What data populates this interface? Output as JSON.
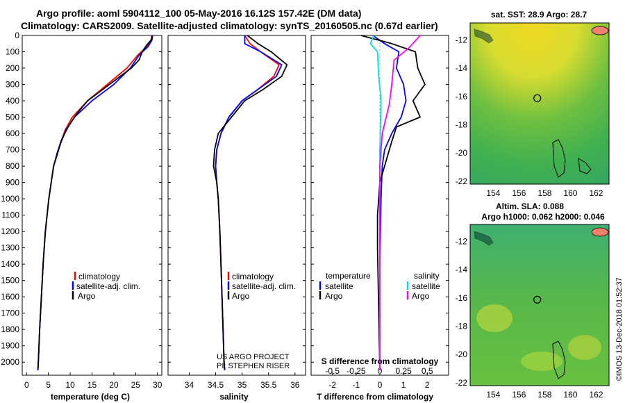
{
  "header": {
    "line1": "Argo profile: aoml 5904112_100 05-May-2016 16.12S 157.42E (DM data)",
    "line2": "Climatology: CARS2009. Satellite-adjusted climatology: synTS_20160505.nc (0.67d earlier)"
  },
  "colors": {
    "climatology": "#ff0000",
    "satellite": "#0000ff",
    "argo": "#000000",
    "sat_salinity": "#00e0e0",
    "argo_salinity": "#ff00ff",
    "land": "#f08070"
  },
  "credit": {
    "line1": "US ARGO PROJECT",
    "line2": "PI: STEPHEN RISER"
  },
  "timestamp": "©IMOS 13-Dec-2018 01:52:37",
  "chart_data": [
    {
      "type": "line",
      "name": "temperature-profile",
      "xlabel": "temperature (deg C)",
      "ylim": [
        2080,
        0
      ],
      "xlim": [
        -1,
        31
      ],
      "xticks": [
        0,
        5,
        10,
        15,
        20,
        25,
        30
      ],
      "yticks": [
        0,
        100,
        200,
        300,
        400,
        500,
        600,
        700,
        800,
        900,
        1000,
        1100,
        1200,
        1300,
        1400,
        1500,
        1600,
        1700,
        1800,
        1900,
        2000
      ],
      "legend": [
        "climatology",
        "satellite-adj. clim.",
        "Argo"
      ],
      "series": [
        {
          "name": "climatology",
          "color": "#ff0000",
          "points": [
            [
              28.7,
              0
            ],
            [
              28.5,
              30
            ],
            [
              27.5,
              70
            ],
            [
              25.5,
              120
            ],
            [
              23,
              200
            ],
            [
              18.5,
              300
            ],
            [
              14,
              400
            ],
            [
              10.5,
              500
            ],
            [
              8.8,
              580
            ],
            [
              7.8,
              660
            ],
            [
              6.2,
              800
            ],
            [
              5.1,
              1000
            ],
            [
              4.3,
              1200
            ],
            [
              3.8,
              1400
            ],
            [
              3.4,
              1600
            ],
            [
              3.0,
              1800
            ],
            [
              2.7,
              2000
            ],
            [
              2.6,
              2050
            ]
          ]
        },
        {
          "name": "satellite-adj. clim.",
          "color": "#0000ff",
          "points": [
            [
              28.9,
              0
            ],
            [
              28.7,
              30
            ],
            [
              27.8,
              70
            ],
            [
              25.8,
              120
            ],
            [
              23.8,
              200
            ],
            [
              20,
              300
            ],
            [
              15,
              400
            ],
            [
              11,
              500
            ],
            [
              9,
              580
            ],
            [
              7.8,
              660
            ],
            [
              6.2,
              800
            ],
            [
              5.1,
              1000
            ],
            [
              4.3,
              1200
            ],
            [
              3.8,
              1400
            ],
            [
              3.4,
              1600
            ],
            [
              3.0,
              1800
            ],
            [
              2.7,
              2000
            ],
            [
              2.6,
              2050
            ]
          ]
        },
        {
          "name": "Argo",
          "color": "#000000",
          "points": [
            [
              28.7,
              5
            ],
            [
              28.8,
              20
            ],
            [
              27.5,
              60
            ],
            [
              26.5,
              100
            ],
            [
              25.8,
              150
            ],
            [
              24,
              200
            ],
            [
              21,
              260
            ],
            [
              17.5,
              330
            ],
            [
              14,
              400
            ],
            [
              11.5,
              480
            ],
            [
              9.5,
              560
            ],
            [
              8,
              640
            ],
            [
              7,
              720
            ],
            [
              6.2,
              800
            ],
            [
              5.1,
              1000
            ],
            [
              4.3,
              1200
            ],
            [
              3.8,
              1400
            ],
            [
              3.4,
              1600
            ],
            [
              3.0,
              1800
            ],
            [
              2.7,
              2000
            ],
            [
              2.6,
              2040
            ]
          ]
        }
      ]
    },
    {
      "type": "line",
      "name": "salinity-profile",
      "xlabel": "salinity",
      "ylim": [
        2080,
        0
      ],
      "xlim": [
        33.6,
        36.2
      ],
      "xticks": [
        34,
        34.5,
        35,
        35.5,
        36
      ],
      "legend": [
        "climatology",
        "satellite-adj. clim.",
        "Argo"
      ],
      "series": [
        {
          "name": "climatology",
          "color": "#ff0000",
          "points": [
            [
              35.05,
              0
            ],
            [
              35.15,
              50
            ],
            [
              35.35,
              100
            ],
            [
              35.7,
              180
            ],
            [
              35.6,
              250
            ],
            [
              35.3,
              330
            ],
            [
              35.0,
              400
            ],
            [
              34.75,
              500
            ],
            [
              34.6,
              600
            ],
            [
              34.52,
              700
            ],
            [
              34.5,
              800
            ],
            [
              34.52,
              900
            ],
            [
              34.55,
              1000
            ],
            [
              34.58,
              1200
            ],
            [
              34.6,
              1400
            ],
            [
              34.62,
              1600
            ],
            [
              34.64,
              1800
            ],
            [
              34.66,
              2000
            ],
            [
              34.67,
              2050
            ]
          ]
        },
        {
          "name": "satellite-adj. clim.",
          "color": "#0000ff",
          "points": [
            [
              35.05,
              0
            ],
            [
              35.05,
              50
            ],
            [
              35.35,
              100
            ],
            [
              35.75,
              180
            ],
            [
              35.65,
              250
            ],
            [
              35.3,
              330
            ],
            [
              35.0,
              400
            ],
            [
              34.75,
              500
            ],
            [
              34.6,
              600
            ],
            [
              34.52,
              700
            ],
            [
              34.5,
              800
            ],
            [
              34.52,
              900
            ],
            [
              34.55,
              1000
            ],
            [
              34.58,
              1200
            ],
            [
              34.6,
              1400
            ],
            [
              34.62,
              1600
            ],
            [
              34.64,
              1800
            ],
            [
              34.66,
              2000
            ],
            [
              34.67,
              2050
            ]
          ]
        },
        {
          "name": "Argo",
          "color": "#000000",
          "points": [
            [
              35.1,
              0
            ],
            [
              35.3,
              50
            ],
            [
              35.55,
              100
            ],
            [
              35.85,
              180
            ],
            [
              35.75,
              250
            ],
            [
              35.4,
              330
            ],
            [
              35.05,
              400
            ],
            [
              34.8,
              500
            ],
            [
              34.55,
              600
            ],
            [
              34.48,
              700
            ],
            [
              34.46,
              800
            ],
            [
              34.52,
              900
            ],
            [
              34.55,
              1000
            ],
            [
              34.58,
              1200
            ],
            [
              34.6,
              1400
            ],
            [
              34.62,
              1600
            ],
            [
              34.64,
              1800
            ],
            [
              34.66,
              2000
            ],
            [
              34.67,
              2040
            ]
          ]
        }
      ]
    },
    {
      "type": "line",
      "name": "difference-profile",
      "xlabel": "T difference from climatology",
      "xlabel2": "S difference from climatology",
      "ylim": [
        2080,
        0
      ],
      "xlim": [
        -2.9,
        2.9
      ],
      "xticks": [
        -2,
        -1,
        0,
        1,
        2
      ],
      "xticks2": [
        "-0.5",
        "-0.25",
        "0",
        "0.25",
        "0.5"
      ],
      "legend_temperature": {
        "title": "temperature",
        "items": [
          "satellite",
          "Argo"
        ]
      },
      "legend_salinity": {
        "title": "salinity",
        "items": [
          "satellite",
          "Argo"
        ]
      },
      "series": [
        {
          "name": "temperature satellite",
          "color": "#0000ff",
          "points": [
            [
              -0.3,
              0
            ],
            [
              0.2,
              50
            ],
            [
              0.8,
              100
            ],
            [
              0.7,
              200
            ],
            [
              1.0,
              300
            ],
            [
              1.1,
              400
            ],
            [
              0.9,
              500
            ],
            [
              0.5,
              600
            ],
            [
              0.2,
              700
            ],
            [
              0.1,
              800
            ],
            [
              0.05,
              1000
            ],
            [
              0,
              1400
            ],
            [
              0,
              2050
            ]
          ]
        },
        {
          "name": "temperature Argo",
          "color": "#000000",
          "points": [
            [
              -0.8,
              0
            ],
            [
              0.5,
              50
            ],
            [
              1.5,
              100
            ],
            [
              1.6,
              200
            ],
            [
              1.9,
              300
            ],
            [
              1.4,
              400
            ],
            [
              1.7,
              500
            ],
            [
              0.7,
              560
            ],
            [
              0.5,
              650
            ],
            [
              0.2,
              800
            ],
            [
              0,
              900
            ],
            [
              -0.1,
              1100
            ],
            [
              -0.1,
              1300
            ],
            [
              0,
              2050
            ]
          ]
        },
        {
          "name": "salinity satellite",
          "color": "#00e0e0",
          "points": [
            [
              -0.25,
              0
            ],
            [
              -0.4,
              50
            ],
            [
              -0.1,
              100
            ],
            [
              -0.05,
              250
            ],
            [
              0.05,
              400
            ],
            [
              0,
              700
            ],
            [
              0,
              2050
            ]
          ]
        },
        {
          "name": "salinity Argo",
          "color": "#ff00ff",
          "points": [
            [
              1.7,
              0
            ],
            [
              1.2,
              80
            ],
            [
              0.6,
              150
            ],
            [
              0.5,
              300
            ],
            [
              0.4,
              420
            ],
            [
              0.1,
              600
            ],
            [
              0,
              800
            ],
            [
              0,
              2050
            ]
          ]
        }
      ]
    },
    {
      "type": "heatmap",
      "name": "sst-map",
      "title": "sat. SST: 28.9 Argo: 28.7",
      "xticks": [
        154,
        156,
        158,
        160,
        162
      ],
      "yticks": [
        -12,
        -14,
        -16,
        -18,
        -20,
        -22
      ],
      "xlim": [
        152.2,
        163
      ],
      "ylim": [
        -22.2,
        -10.8
      ],
      "marker": [
        157.42,
        -16.12
      ]
    },
    {
      "type": "heatmap",
      "name": "sla-map",
      "title": "Altim. SLA: 0.088",
      "subtitle": "Argo h1000: 0.062 h2000: 0.046",
      "xticks": [
        154,
        156,
        158,
        160,
        162
      ],
      "yticks": [
        -12,
        -14,
        -16,
        -18,
        -20,
        -22
      ],
      "xlim": [
        152.2,
        163
      ],
      "ylim": [
        -22.2,
        -10.8
      ],
      "marker": [
        157.42,
        -16.12
      ]
    }
  ]
}
